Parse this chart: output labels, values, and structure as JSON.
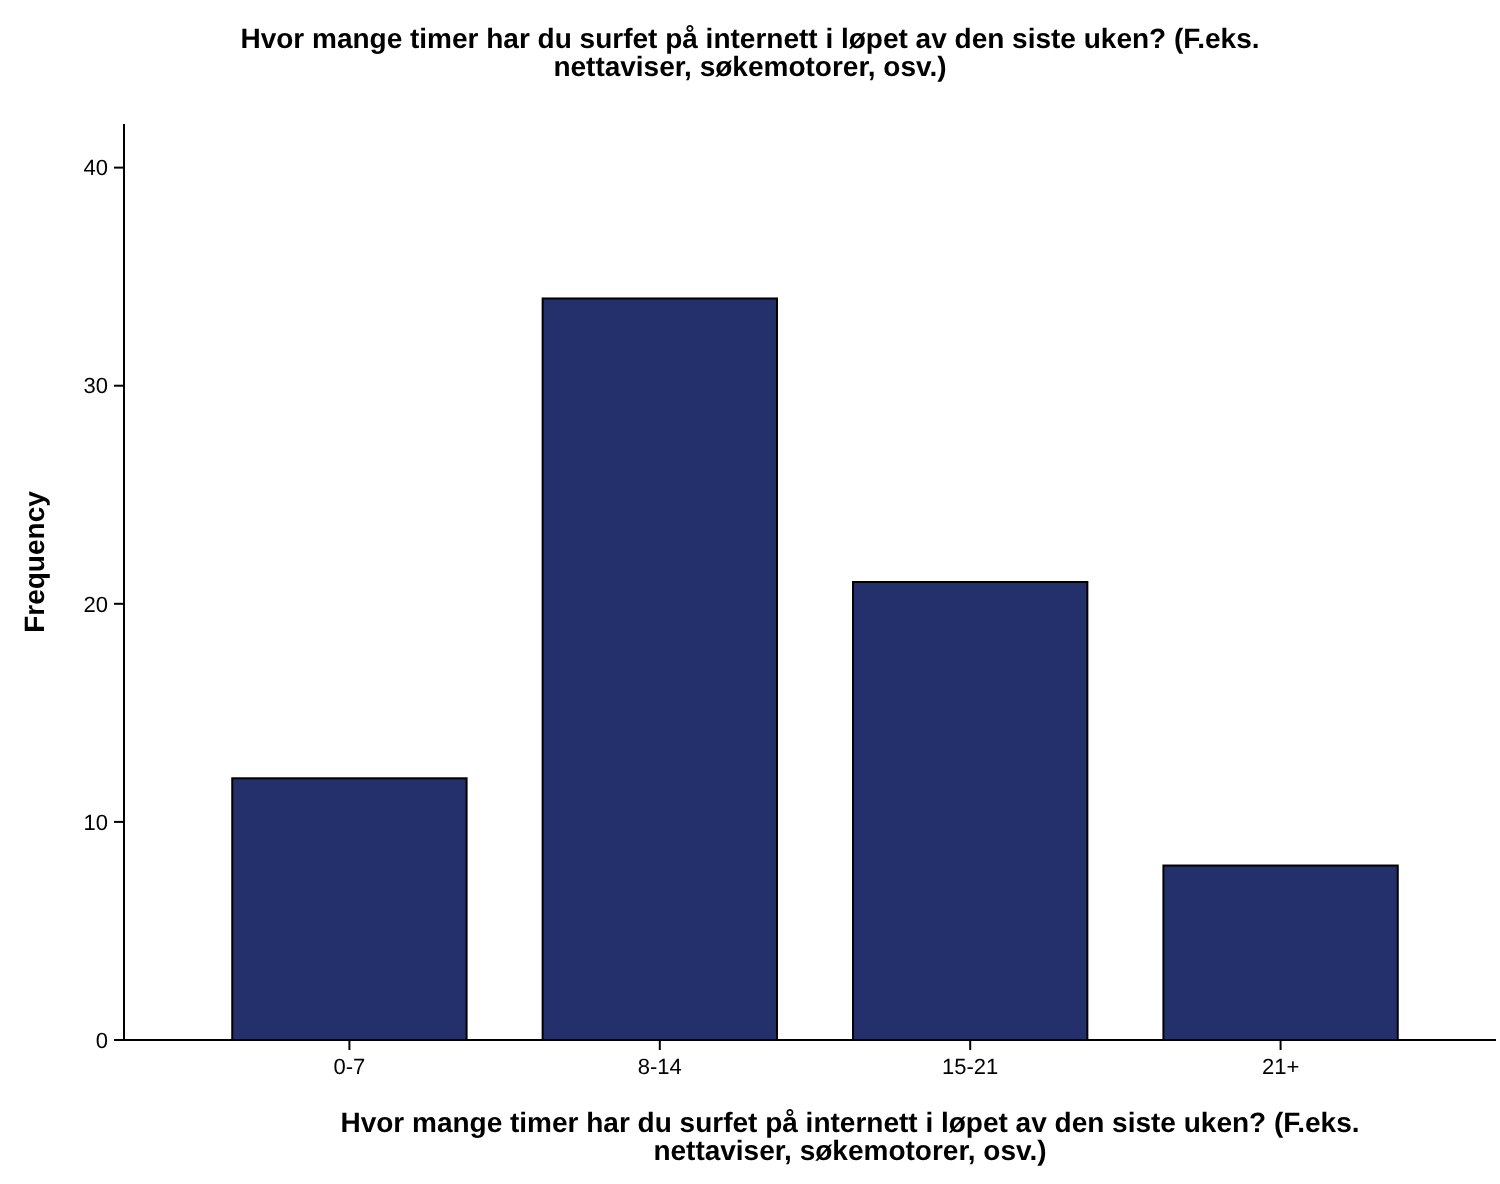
{
  "chart_data": {
    "type": "bar",
    "title": "Hvor mange timer har du surfet på internett i løpet av den siste uken? (F.eks. nettaviser, søkemotorer, osv.)",
    "xlabel": "Hvor mange timer har du surfet på internett i løpet av den siste uken? (F.eks. nettaviser, søkemotorer, osv.)",
    "ylabel": "Frequency",
    "categories": [
      "0-7",
      "8-14",
      "15-21",
      "21+"
    ],
    "values": [
      12,
      34,
      21,
      8
    ],
    "color": "#23306b",
    "ylim": [
      0,
      42
    ],
    "yticks": [
      0,
      10,
      20,
      30,
      40
    ],
    "grid": false
  }
}
